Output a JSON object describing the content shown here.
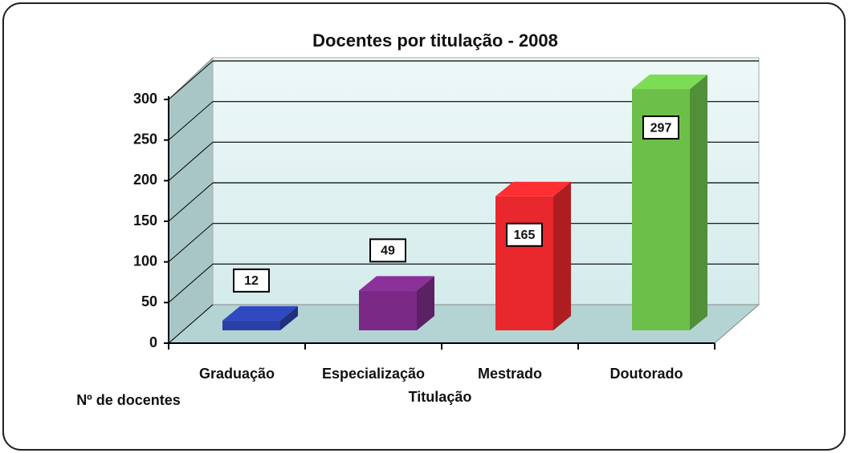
{
  "chart_data": {
    "type": "bar3d",
    "title": "Docentes por titulação  - 2008",
    "categories": [
      "Graduação",
      "Especialização",
      "Mestrado",
      "Doutorado"
    ],
    "values": [
      12,
      49,
      165,
      297
    ],
    "colors": [
      "#2a3fa8",
      "#7a2a86",
      "#e8282c",
      "#6cc04a"
    ],
    "ylim": [
      0,
      300
    ],
    "yticks": [
      0,
      50,
      100,
      150,
      200,
      250,
      300
    ],
    "grid": true,
    "x_label": "Titulação",
    "y_label": "Nº de docentes"
  }
}
